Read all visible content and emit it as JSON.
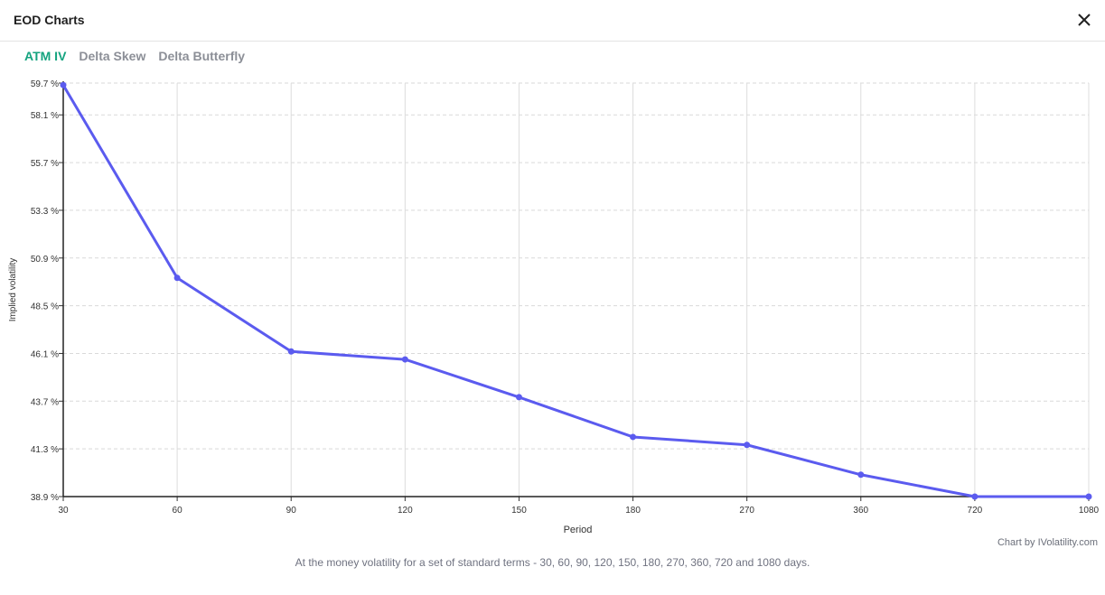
{
  "window": {
    "title": "EOD Charts",
    "close_icon": "close-icon"
  },
  "tabs": [
    {
      "label": "ATM IV",
      "active": true
    },
    {
      "label": "Delta Skew",
      "active": false
    },
    {
      "label": "Delta Butterfly",
      "active": false
    }
  ],
  "colors": {
    "active_tab": "#14a37f",
    "inactive_tab": "#8c8f97",
    "series_line": "#5b5bef"
  },
  "chart_data": {
    "type": "line",
    "xlabel": "Period",
    "ylabel": "Implied volatility",
    "categories": [
      "30",
      "60",
      "90",
      "120",
      "150",
      "180",
      "270",
      "360",
      "720",
      "1080"
    ],
    "series": [
      {
        "values": [
          59.6,
          49.9,
          46.2,
          45.8,
          43.9,
          41.9,
          41.5,
          40.0,
          38.9,
          38.9
        ]
      }
    ],
    "yticks": [
      "59.7 %",
      "58.1 %",
      "55.7 %",
      "53.3 %",
      "50.9 %",
      "48.5 %",
      "46.1 %",
      "43.7 %",
      "41.3 %",
      "38.9 %"
    ],
    "ylim": [
      38.9,
      59.7
    ],
    "grid": true
  },
  "credit": "Chart by IVolatility.com",
  "caption": "At the money volatility for a set of standard terms - 30, 60, 90, 120, 150, 180, 270, 360, 720 and 1080 days."
}
